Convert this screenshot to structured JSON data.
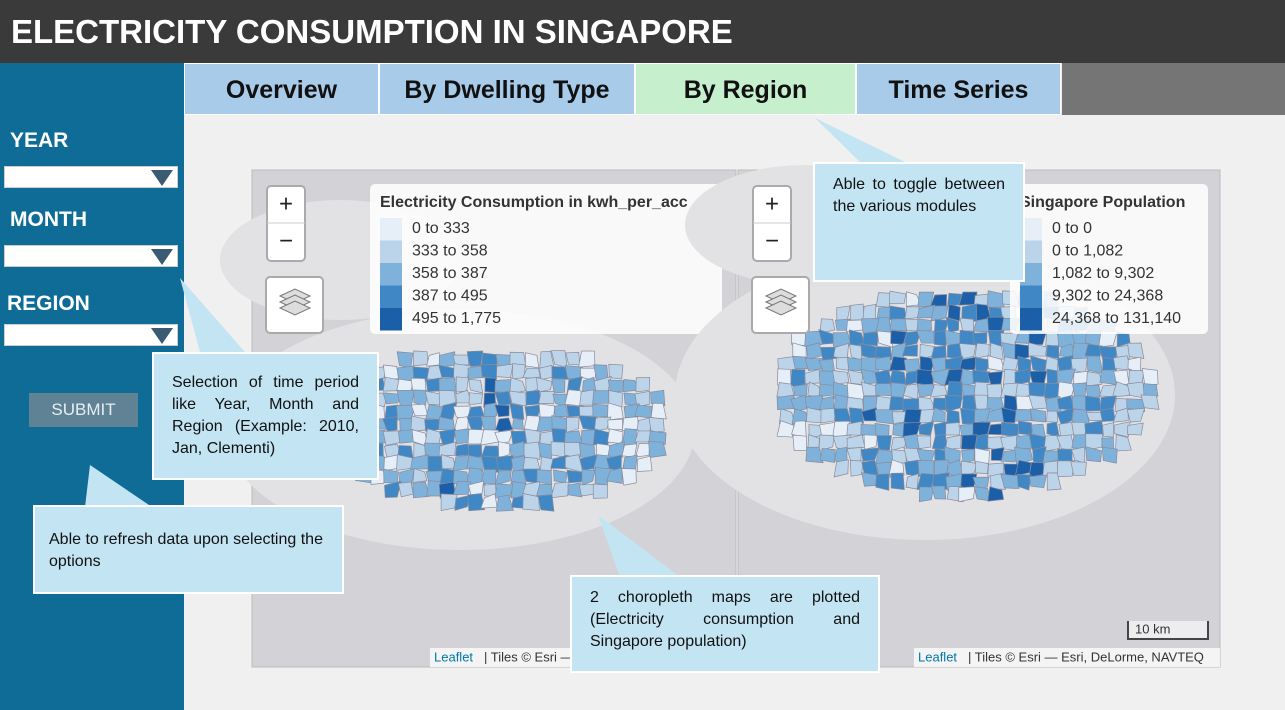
{
  "header": {
    "title": "ELECTRICITY CONSUMPTION IN SINGAPORE"
  },
  "tabs": [
    "Overview",
    "By Dwelling Type",
    "By Region",
    "Time Series"
  ],
  "sidebar": {
    "fields": [
      "YEAR",
      "MONTH",
      "REGION"
    ],
    "submit": "SUBMIT"
  },
  "map_controls": {
    "zoom_in": "+",
    "zoom_out": "−",
    "scale": "10 km"
  },
  "maps": [
    {
      "legend": {
        "title": "Electricity Consumption in kwh_per_acc",
        "entries": [
          "0 to 333",
          "333 to 358",
          "358 to 387",
          "387 to 495",
          "495 to 1,775"
        ],
        "colors": [
          "#e6eef8",
          "#bcd4ea",
          "#7fb2da",
          "#3f88c5",
          "#1a5fa8"
        ]
      },
      "attribution": {
        "link": "Leaflet",
        "text": "| Tiles © Esri — Esri, DeLorme, NAVTEQ"
      }
    },
    {
      "legend": {
        "title": "Singapore Population",
        "entries": [
          "0 to 0",
          "0 to 1,082",
          "1,082 to 9,302",
          "9,302 to 24,368",
          "24,368 to 131,140"
        ],
        "colors": [
          "#e6eef8",
          "#bcd4ea",
          "#7fb2da",
          "#3f88c5",
          "#1a5fa8"
        ]
      },
      "attribution": {
        "link": "Leaflet",
        "text": "| Tiles © Esri — Esri, DeLorme, NAVTEQ"
      }
    }
  ],
  "callouts": [
    "Able to toggle between the various modules",
    "Selection of time period like Year, Month and Region (Example: 2010, Jan, Clementi)",
    "Able to refresh data upon selecting the options",
    "2 choropleth maps are plotted (Electricity consumption and Singapore population)"
  ]
}
